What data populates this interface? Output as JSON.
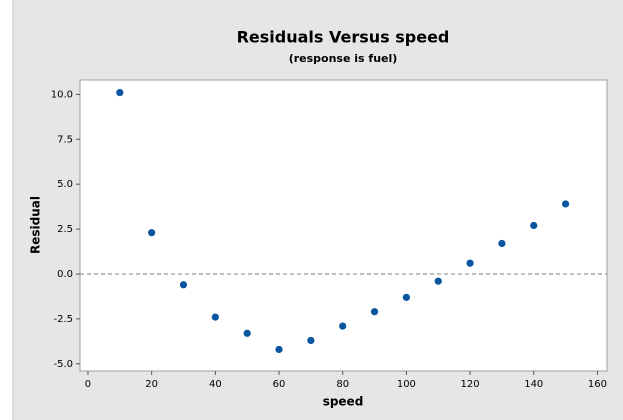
{
  "chart_data": {
    "type": "scatter",
    "title": "Residuals Versus speed",
    "subtitle": "(response is fuel)",
    "xlabel": "speed",
    "ylabel": "Residual",
    "x": [
      10,
      20,
      30,
      40,
      50,
      60,
      70,
      80,
      90,
      100,
      110,
      120,
      130,
      140,
      150
    ],
    "values": [
      10.1,
      2.3,
      -0.6,
      -2.4,
      -3.3,
      -4.2,
      -3.7,
      -2.9,
      -2.1,
      -1.3,
      -0.4,
      0.6,
      1.7,
      2.7,
      3.9
    ],
    "color": "#0a559f",
    "xlim": [
      -2.5,
      163
    ],
    "xticks": [
      0,
      20,
      40,
      60,
      80,
      100,
      120,
      140,
      160
    ],
    "ylim": [
      -5.4,
      10.8
    ],
    "yticks": [
      {
        "value": -5,
        "label": "-5.0"
      },
      -2.5,
      {
        "value": 0,
        "label": "0.0"
      },
      2.5,
      {
        "value": 5,
        "label": "5.0"
      },
      {
        "value": 7.5,
        "label": "7.5"
      },
      {
        "value": 10,
        "label": "10.0"
      }
    ],
    "reference_line": 0
  }
}
